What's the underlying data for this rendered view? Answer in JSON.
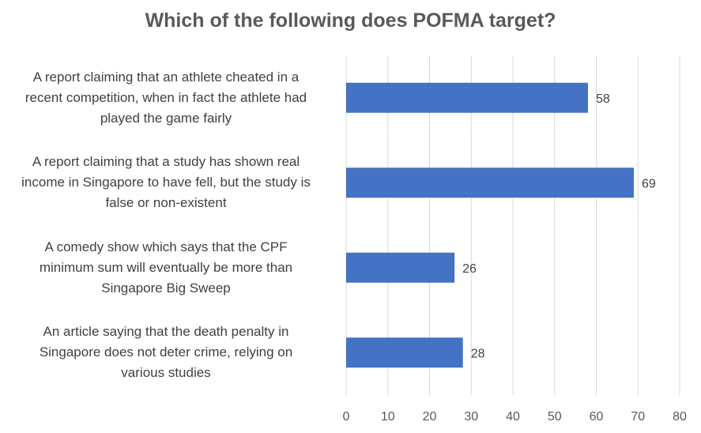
{
  "chart_data": {
    "type": "bar",
    "orientation": "horizontal",
    "title": "Which of the following does POFMA target?",
    "categories": [
      "A report claiming that an athlete cheated in a recent competition, when in fact the athlete had played the game fairly",
      "A report claiming that a study has shown real income in Singapore to have fell, but the study is false or non-existent",
      "A comedy show which says that the CPF minimum sum will eventually be more than Singapore Big Sweep",
      "An article saying that the death penalty in Singapore does not deter crime, relying on various studies"
    ],
    "category_lines": [
      [
        "A report claiming that an athlete cheated in a",
        "recent competition, when in fact the athlete had",
        "played the game fairly"
      ],
      [
        "A report claiming that a study has shown real",
        "income in Singapore to have fell, but the study is",
        "false or non-existent"
      ],
      [
        "A comedy show which says that the CPF",
        "minimum sum will eventually be more than",
        "Singapore Big Sweep"
      ],
      [
        "An article saying that the death penalty in",
        "Singapore does not deter crime, relying on",
        "various studies"
      ]
    ],
    "values": [
      58,
      69,
      26,
      28
    ],
    "xlim": [
      0,
      80
    ],
    "xticks": [
      0,
      10,
      20,
      30,
      40,
      50,
      60,
      70,
      80
    ],
    "data_labels": true,
    "grid": "vertical",
    "bar_color": "#4472C4"
  }
}
